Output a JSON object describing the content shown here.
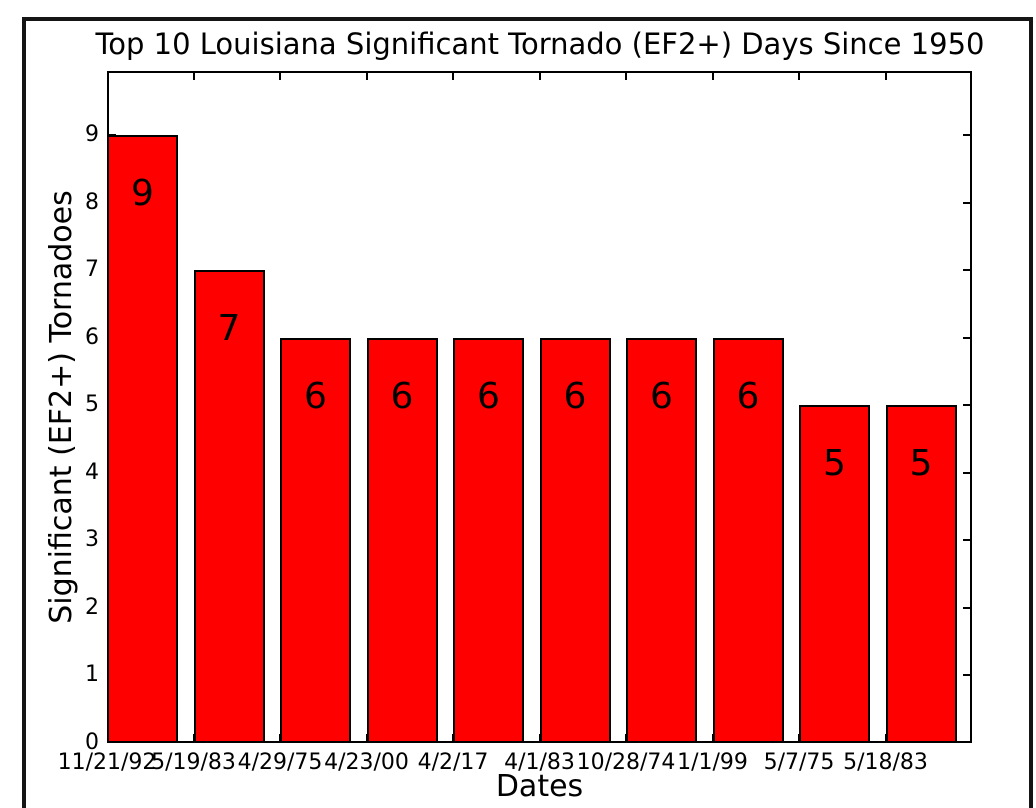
{
  "chart_data": {
    "type": "bar",
    "title": "Top 10 Louisiana Significant Tornado (EF2+) Days Since 1950",
    "xlabel": "Dates",
    "ylabel": "Significant (EF2+) Tornadoes",
    "categories": [
      "11/21/92",
      "5/19/83",
      "4/29/75",
      "4/23/00",
      "4/2/17",
      "4/1/83",
      "10/28/74",
      "1/1/99",
      "5/7/75",
      "5/18/83"
    ],
    "values": [
      9,
      7,
      6,
      6,
      6,
      6,
      6,
      6,
      5,
      5
    ],
    "bar_labels": [
      "9",
      "7",
      "6",
      "6",
      "6",
      "6",
      "6",
      "6",
      "5",
      "5"
    ],
    "yticks": [
      0,
      1,
      2,
      3,
      4,
      5,
      6,
      7,
      8,
      9
    ],
    "ytick_labels": [
      "0",
      "1",
      "2",
      "3",
      "4",
      "5",
      "6",
      "7",
      "8",
      "9"
    ],
    "ylim": [
      0,
      9.95
    ],
    "grid": false,
    "legend": null,
    "bar_color": "#ff0000",
    "bar_edge_color": "#000000",
    "text_color": "#000000"
  }
}
